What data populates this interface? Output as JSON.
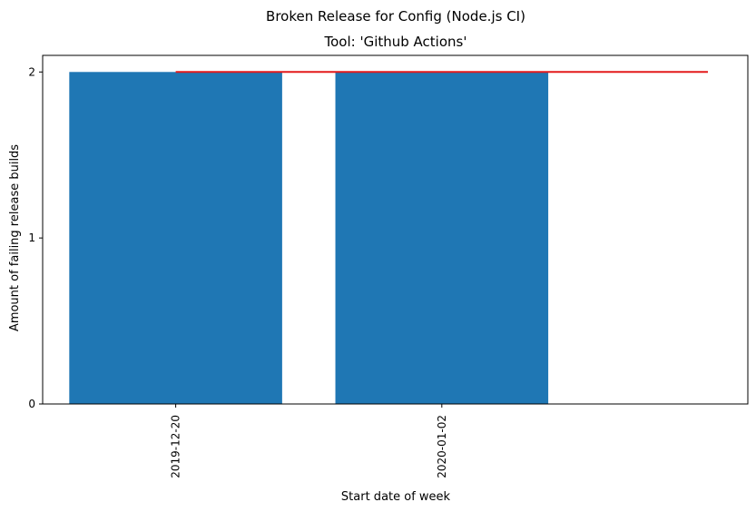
{
  "chart_data": {
    "type": "bar",
    "suptitle": "Broken Release for Config (Node.js CI)",
    "title": "Tool: 'Github Actions'",
    "xlabel": "Start date of week",
    "ylabel": "Amount of failing release builds",
    "categories": [
      "2019-12-20",
      "2020-01-02"
    ],
    "values": [
      2,
      2
    ],
    "bar_color": "#1f77b4",
    "ylim": [
      0,
      2.1
    ],
    "yticks": [
      0,
      1,
      2
    ],
    "grid": false,
    "reference_line": {
      "color": "#e31a1c",
      "y": 2,
      "x_start": "2019-12-20",
      "x_end_categories_beyond_last": 1
    }
  }
}
